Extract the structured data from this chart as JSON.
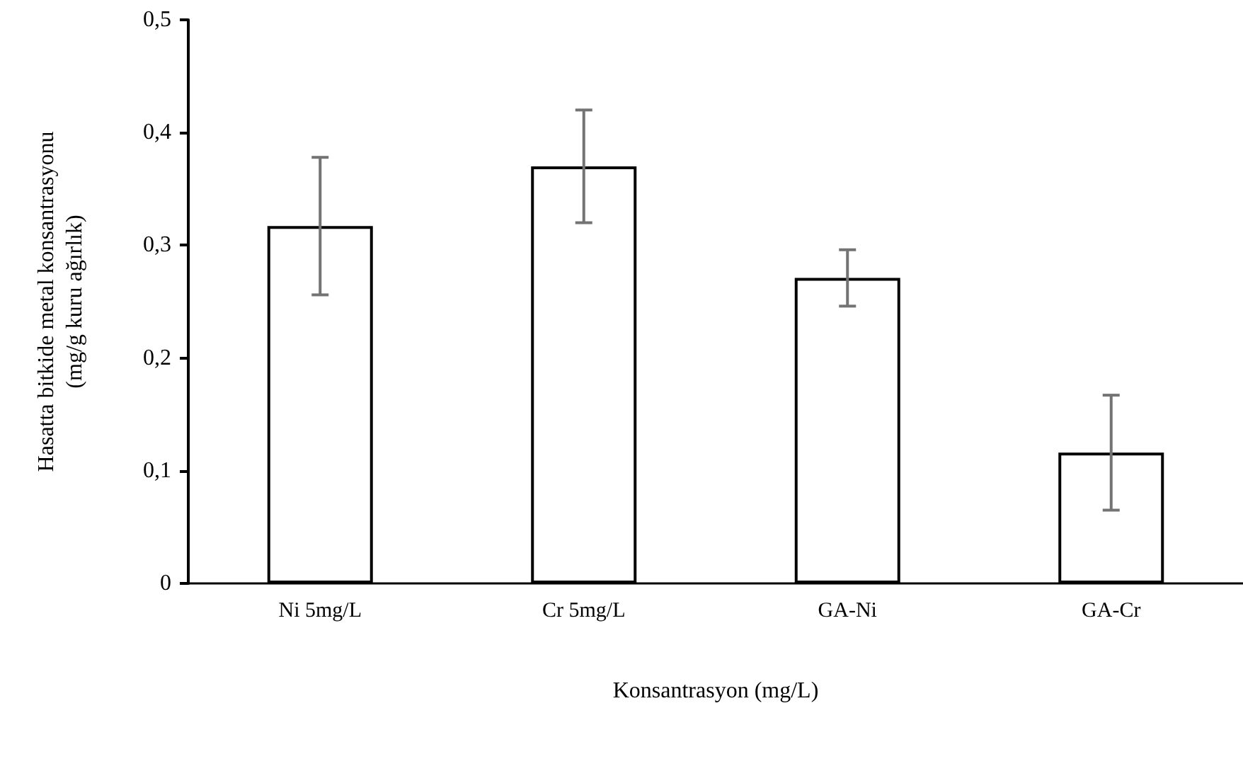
{
  "chart_data": {
    "type": "bar",
    "xlabel": "Konsantrasyon (mg/L)",
    "ylabel": "Hasatta bitkide metal konsantrasyonu\n(mg/g kuru ağırlık)",
    "categories": [
      "Ni 5mg/L",
      "Cr 5mg/L",
      "GA-Ni",
      "GA-Cr"
    ],
    "values": [
      0.317,
      0.37,
      0.271,
      0.116
    ],
    "errors": [
      0.061,
      0.05,
      0.025,
      0.051
    ],
    "color": "#ffffff",
    "ylim": [
      0,
      0.5
    ],
    "yticks": [
      0,
      {
        "value": 0.1,
        "label": "0,1"
      },
      {
        "value": 0.2,
        "label": "0,2"
      },
      {
        "value": 0.3,
        "label": "0,3"
      },
      {
        "value": 0.4,
        "label": "0,4"
      },
      {
        "value": 0.5,
        "label": "0,5"
      }
    ],
    "grid": false
  }
}
